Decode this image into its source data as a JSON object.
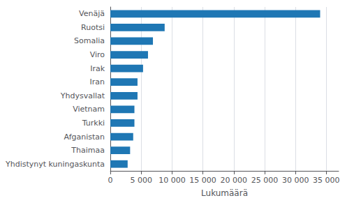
{
  "chart_data": {
    "type": "bar",
    "orientation": "horizontal",
    "categories": [
      "Yhdistynyt kuningaskunta",
      "Thaimaa",
      "Afganistan",
      "Turkki",
      "Vietnam",
      "Yhdysvallat",
      "Iran",
      "Irak",
      "Viro",
      "Somalia",
      "Ruotsi",
      "Venäjä"
    ],
    "values": [
      2800,
      3200,
      3700,
      3900,
      3900,
      4400,
      4400,
      5300,
      6100,
      6900,
      8800,
      34000
    ],
    "color": "#1f77b4",
    "xlabel": "Lukumäärä",
    "xlim": [
      0,
      37000
    ],
    "xticks": [
      0,
      {
        "value": 5000,
        "label": "5 000"
      },
      {
        "value": 10000,
        "label": "10 000"
      },
      {
        "value": 15000,
        "label": "15 000"
      },
      {
        "value": 20000,
        "label": "20 000"
      },
      {
        "value": 25000,
        "label": "25 000"
      },
      {
        "value": 30000,
        "label": "30 000"
      },
      {
        "value": 35000,
        "label": "35 000"
      }
    ],
    "grid": true
  }
}
